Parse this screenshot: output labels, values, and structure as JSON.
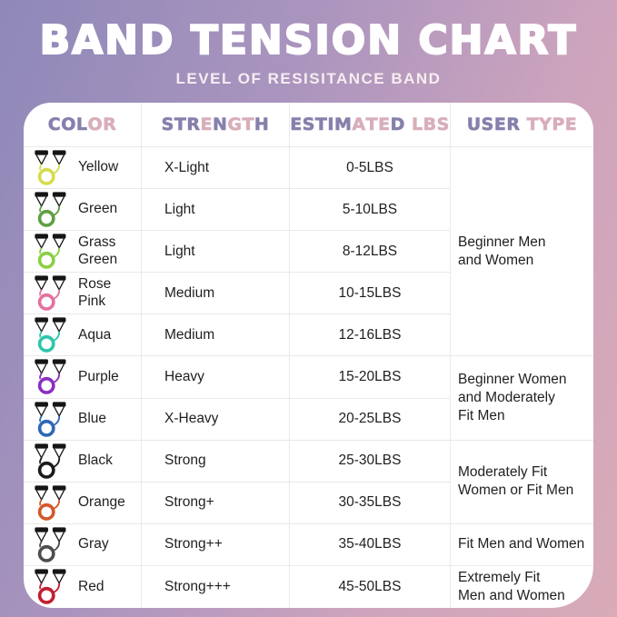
{
  "title": "BAND TENSION CHART",
  "subtitle": "LEVEL OF RESISITANCE BAND",
  "table": {
    "columns": [
      {
        "label": "COLOR",
        "pattern": "pppkk"
      },
      {
        "label": "STRENGTH",
        "pattern": "pppkpkkp"
      },
      {
        "label": "ESTIMATED LBS",
        "pattern": "pppppkkkp kkk"
      },
      {
        "label": "USER TYPE",
        "pattern": "pppp kkkk"
      }
    ],
    "rows": [
      {
        "color": "Yellow",
        "hex": "#d6dc4d",
        "strength": "X-Light",
        "lbs": "0-5LBS"
      },
      {
        "color": "Green",
        "hex": "#5f9e43",
        "strength": "Light",
        "lbs": "5-10LBS"
      },
      {
        "color": "Grass Green",
        "hex": "#8ccf44",
        "strength": "Light",
        "lbs": "8-12LBS"
      },
      {
        "color": "Rose Pink",
        "hex": "#e4719f",
        "strength": "Medium",
        "lbs": "10-15LBS"
      },
      {
        "color": "Aqua",
        "hex": "#2fc5ad",
        "strength": "Medium",
        "lbs": "12-16LBS"
      },
      {
        "color": "Purple",
        "hex": "#8a2fc2",
        "strength": "Heavy",
        "lbs": "15-20LBS"
      },
      {
        "color": "Blue",
        "hex": "#2f67b5",
        "strength": "X-Heavy",
        "lbs": "20-25LBS"
      },
      {
        "color": "Black",
        "hex": "#1b1b1b",
        "strength": "Strong",
        "lbs": "25-30LBS"
      },
      {
        "color": "Orange",
        "hex": "#d2592a",
        "strength": "Strong+",
        "lbs": "30-35LBS"
      },
      {
        "color": "Gray",
        "hex": "#4e4e4e",
        "strength": "Strong++",
        "lbs": "35-40LBS"
      },
      {
        "color": "Red",
        "hex": "#c21f30",
        "strength": "Strong+++",
        "lbs": "45-50LBS"
      }
    ],
    "user_groups": [
      {
        "label": "Beginner Men\nand Women",
        "span": 5
      },
      {
        "label": "Beginner Women\nand Moderately\nFit Men",
        "span": 2
      },
      {
        "label": "Moderately Fit\nWomen or Fit Men",
        "span": 2
      },
      {
        "label": "Fit Men and Women",
        "span": 1
      },
      {
        "label": "Extremely Fit\nMen and Women",
        "span": 1
      }
    ]
  },
  "colors": {
    "header_purple": "#8680ac",
    "header_pink": "#d8aebb",
    "background_top_left": "#8e88b9",
    "background_bottom_right": "#d9abb8",
    "card": "#ffffff",
    "grid_line": "#e9e9e9",
    "body_text": "#1f1f1f",
    "title_text": "#ffffff",
    "handle_black": "#151515"
  }
}
